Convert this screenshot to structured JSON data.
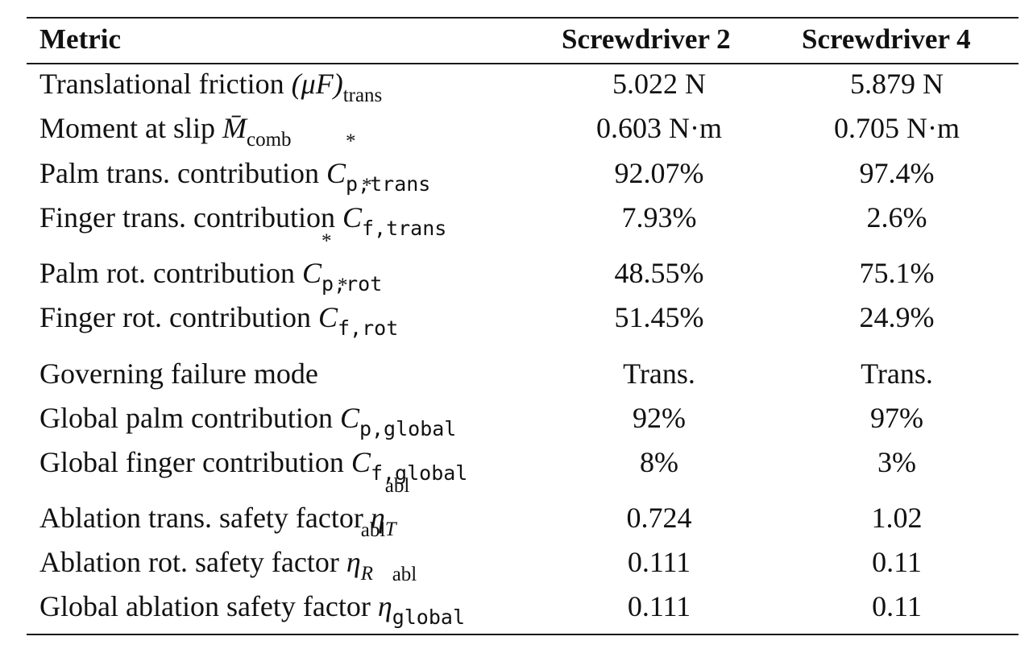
{
  "table": {
    "headers": [
      "Metric",
      "Screwdriver 2",
      "Screwdriver 4"
    ],
    "rows": [
      {
        "label": "Translational friction",
        "sym": "(μF)",
        "sub": "trans",
        "sup": "",
        "v1": "5.022 N",
        "v2": "5.879 N"
      },
      {
        "label": "Moment at slip",
        "sym": "M̄",
        "sub": "comb",
        "sup": "",
        "v1": "0.603 N·m",
        "v2": "0.705 N·m"
      },
      {
        "label": "Palm trans. contribution",
        "sym": "C",
        "sub": "p,trans",
        "sup": "*",
        "v1": "92.07%",
        "v2": "97.4%"
      },
      {
        "label": "Finger trans. contribution",
        "sym": "C",
        "sub": "f,trans",
        "sup": "*",
        "v1": "7.93%",
        "v2": "2.6%"
      },
      {
        "label": "Palm rot. contribution",
        "sym": "C",
        "sub": "p,rot",
        "sup": "*",
        "v1": "48.55%",
        "v2": "75.1%"
      },
      {
        "label": "Finger rot. contribution",
        "sym": "C",
        "sub": "f,rot",
        "sup": "*",
        "v1": "51.45%",
        "v2": "24.9%"
      },
      {
        "label": "Governing failure mode",
        "sym": "",
        "sub": "",
        "sup": "",
        "v1": "Trans.",
        "v2": "Trans."
      },
      {
        "label": "Global palm contribution",
        "sym": "C",
        "sub": "p,global",
        "sup": "",
        "v1": "92%",
        "v2": "97%"
      },
      {
        "label": "Global finger contribution",
        "sym": "C",
        "sub": "f,global",
        "sup": "",
        "v1": "8%",
        "v2": "3%"
      },
      {
        "label": "Ablation trans. safety factor",
        "sym": "η",
        "sub": "T",
        "sup": "abl",
        "v1": "0.724",
        "v2": "1.02"
      },
      {
        "label": "Ablation rot. safety factor",
        "sym": "η",
        "sub": "R",
        "sup": "abl",
        "v1": "0.111",
        "v2": "0.11"
      },
      {
        "label": "Global ablation safety factor",
        "sym": "η",
        "sub": "global",
        "sup": "abl",
        "v1": "0.111",
        "v2": "0.11"
      }
    ]
  }
}
